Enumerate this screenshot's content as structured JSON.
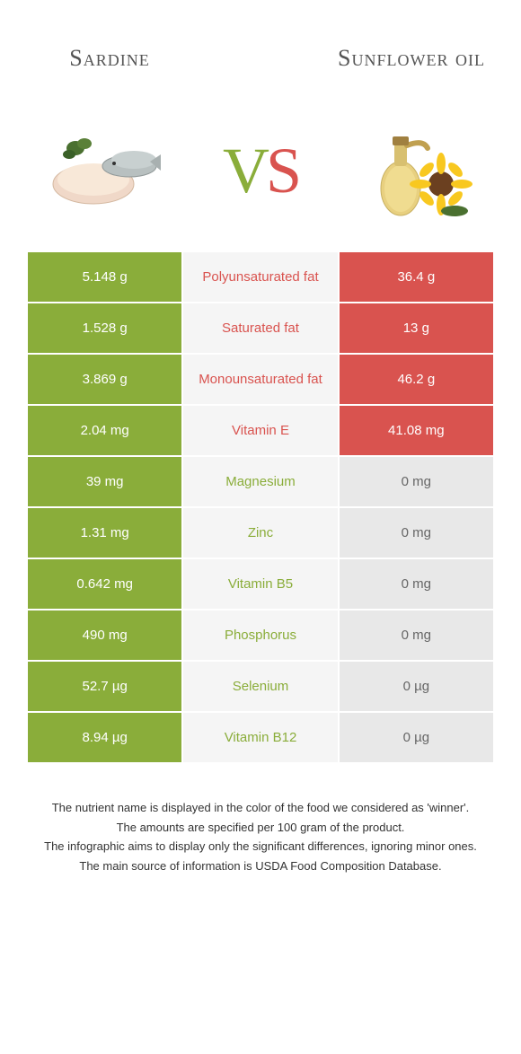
{
  "header": {
    "left_title": "Sardine",
    "right_title": "Sunflower oil"
  },
  "vs": {
    "v": "V",
    "s": "S"
  },
  "colors": {
    "sardine_winner": "#8aad3a",
    "sunflower_winner": "#d9534f",
    "row_left_bg": "#8aad3a",
    "row_mid_bg": "#f5f5f5",
    "row_right_bg_loser": "#e8e8e8",
    "row_right_bg_winner": "#d9534f",
    "row_left_bg_loser": "#e8e8e8",
    "mid_text_sardine": "#8aad3a",
    "mid_text_sunflower": "#d9534f",
    "loser_text": "#666"
  },
  "rows": [
    {
      "nutrient": "Polyunsaturated fat",
      "left": "5.148 g",
      "right": "36.4 g",
      "winner": "right"
    },
    {
      "nutrient": "Saturated fat",
      "left": "1.528 g",
      "right": "13 g",
      "winner": "right"
    },
    {
      "nutrient": "Monounsaturated fat",
      "left": "3.869 g",
      "right": "46.2 g",
      "winner": "right"
    },
    {
      "nutrient": "Vitamin E",
      "left": "2.04 mg",
      "right": "41.08 mg",
      "winner": "right"
    },
    {
      "nutrient": "Magnesium",
      "left": "39 mg",
      "right": "0 mg",
      "winner": "left"
    },
    {
      "nutrient": "Zinc",
      "left": "1.31 mg",
      "right": "0 mg",
      "winner": "left"
    },
    {
      "nutrient": "Vitamin B5",
      "left": "0.642 mg",
      "right": "0 mg",
      "winner": "left"
    },
    {
      "nutrient": "Phosphorus",
      "left": "490 mg",
      "right": "0 mg",
      "winner": "left"
    },
    {
      "nutrient": "Selenium",
      "left": "52.7 µg",
      "right": "0 µg",
      "winner": "left"
    },
    {
      "nutrient": "Vitamin B12",
      "left": "8.94 µg",
      "right": "0 µg",
      "winner": "left"
    }
  ],
  "footnotes": [
    "The nutrient name is displayed in the color of the food we considered as 'winner'.",
    "The amounts are specified per 100 gram of the product.",
    "The infographic aims to display only the significant differences, ignoring minor ones.",
    "The main source of information is USDA Food Composition Database."
  ]
}
